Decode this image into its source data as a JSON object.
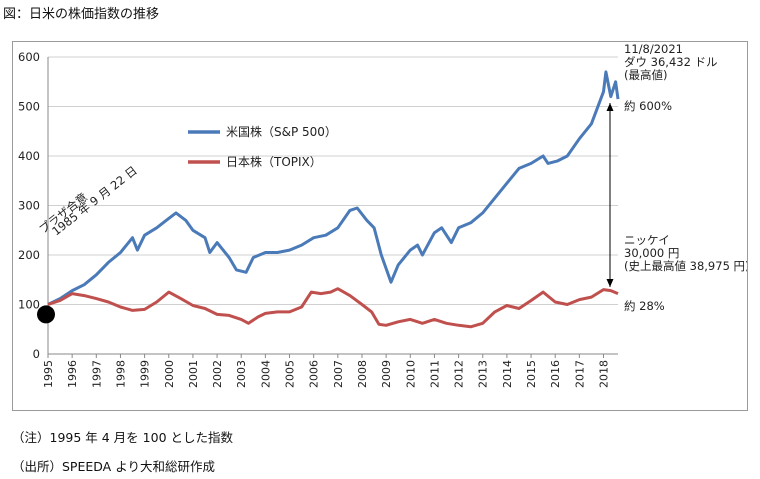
{
  "figure": {
    "title": "図：日米の株価指数の推移",
    "notes": [
      "（注）1995 年 4 月を 100 とした指数",
      "（出所）SPEEDA より大和総研作成"
    ]
  },
  "chart_data": {
    "type": "line",
    "title": "",
    "xlabel": "",
    "ylabel": "",
    "xlim": [
      1995.0,
      2018.6
    ],
    "ylim": [
      0,
      600
    ],
    "yticks": [
      0,
      100,
      200,
      300,
      400,
      500,
      600
    ],
    "xticks": [
      "1995",
      "1996",
      "1997",
      "1998",
      "1999",
      "2000",
      "2001",
      "2002",
      "2003",
      "2004",
      "2005",
      "2006",
      "2007",
      "2008",
      "2009",
      "2010",
      "2011",
      "2012",
      "2013",
      "2014",
      "2015",
      "2016",
      "2017",
      "2018"
    ],
    "grid": true,
    "legend_position": "upper-left-center",
    "series": [
      {
        "name": "米国株（S&P 500）",
        "color": "#4a7ab8",
        "x": [
          1995.0,
          1995.5,
          1996.0,
          1996.5,
          1997.0,
          1997.5,
          1998.0,
          1998.5,
          1998.7,
          1999.0,
          1999.5,
          1999.9,
          2000.3,
          2000.7,
          2001.0,
          2001.5,
          2001.7,
          2002.0,
          2002.5,
          2002.8,
          2003.2,
          2003.5,
          2004.0,
          2004.5,
          2005.0,
          2005.5,
          2006.0,
          2006.5,
          2007.0,
          2007.5,
          2007.8,
          2008.2,
          2008.5,
          2008.8,
          2009.2,
          2009.5,
          2010.0,
          2010.3,
          2010.5,
          2011.0,
          2011.3,
          2011.7,
          2012.0,
          2012.5,
          2013.0,
          2013.5,
          2014.0,
          2014.5,
          2015.0,
          2015.5,
          2015.7,
          2016.1,
          2016.5,
          2017.0,
          2017.5,
          2018.0,
          2018.1,
          2018.3,
          2018.5,
          2018.6
        ],
        "y": [
          100,
          112,
          128,
          140,
          160,
          185,
          205,
          235,
          210,
          240,
          255,
          270,
          285,
          270,
          250,
          235,
          205,
          225,
          195,
          170,
          165,
          195,
          205,
          205,
          210,
          220,
          235,
          240,
          255,
          290,
          295,
          270,
          255,
          200,
          145,
          180,
          210,
          220,
          200,
          245,
          255,
          225,
          255,
          265,
          285,
          315,
          345,
          375,
          385,
          400,
          385,
          390,
          400,
          435,
          465,
          530,
          570,
          520,
          550,
          515
        ]
      },
      {
        "name": "日本株（TOPIX）",
        "color": "#c0504d",
        "x": [
          1995.0,
          1995.5,
          1996.0,
          1996.5,
          1997.0,
          1997.5,
          1998.0,
          1998.5,
          1999.0,
          1999.5,
          2000.0,
          2000.5,
          2001.0,
          2001.5,
          2002.0,
          2002.5,
          2003.0,
          2003.3,
          2003.7,
          2004.0,
          2004.5,
          2005.0,
          2005.5,
          2005.9,
          2006.3,
          2006.7,
          2007.0,
          2007.5,
          2008.0,
          2008.4,
          2008.7,
          2009.0,
          2009.5,
          2010.0,
          2010.5,
          2011.0,
          2011.5,
          2012.0,
          2012.5,
          2013.0,
          2013.5,
          2014.0,
          2014.5,
          2015.0,
          2015.5,
          2016.0,
          2016.5,
          2017.0,
          2017.5,
          2018.0,
          2018.3,
          2018.6
        ],
        "y": [
          100,
          108,
          122,
          118,
          112,
          105,
          95,
          88,
          90,
          105,
          125,
          112,
          98,
          92,
          80,
          78,
          70,
          62,
          75,
          82,
          85,
          85,
          95,
          125,
          122,
          125,
          132,
          118,
          100,
          85,
          60,
          58,
          65,
          70,
          62,
          70,
          62,
          58,
          55,
          62,
          85,
          98,
          92,
          108,
          125,
          105,
          100,
          110,
          115,
          130,
          128,
          122
        ]
      }
    ],
    "annotations": {
      "plaza": "プラザ合意\n1985 年 9 月 22 日",
      "dow_high": "11/8/2021\nダウ 36,432 ドル\n(最高値)",
      "us_gain": "約 600%",
      "nikkei": "ニッケイ\n30,000 円\n(史上最高値 38,975 円)",
      "jp_gain": "約 28%"
    }
  }
}
